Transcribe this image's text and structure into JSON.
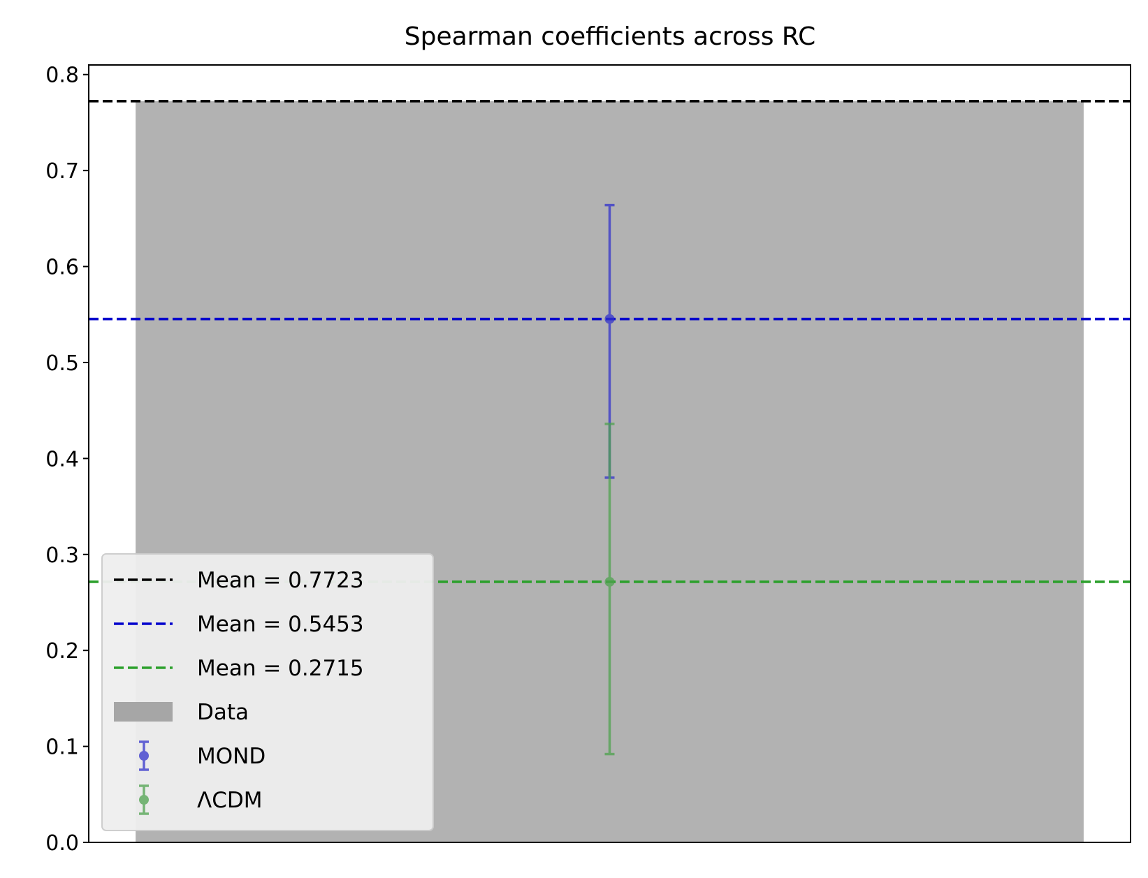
{
  "chart_data": {
    "type": "bar",
    "title": "Spearman coefficients across RC",
    "xlabel": "",
    "ylabel": "",
    "ylim": [
      0,
      0.81
    ],
    "yticks": [
      "0.0",
      "0.1",
      "0.2",
      "0.3",
      "0.4",
      "0.5",
      "0.6",
      "0.7",
      "0.8"
    ],
    "ytick_values": [
      0.0,
      0.1,
      0.2,
      0.3,
      0.4,
      0.5,
      0.6,
      0.7,
      0.8
    ],
    "grid": false,
    "legend_position": "lower left",
    "bar": {
      "name": "Data",
      "value": 0.7723,
      "color": "#b2b2b2"
    },
    "hlines": [
      {
        "label": "Mean = 0.7723",
        "value": 0.7723,
        "color": "#000000",
        "style": "dashed"
      },
      {
        "label": "Mean = 0.5453",
        "value": 0.5453,
        "color": "#0000cc",
        "style": "dashed"
      },
      {
        "label": "Mean = 0.2715",
        "value": 0.2715,
        "color": "#2ca02c",
        "style": "dashed"
      }
    ],
    "errorbars": [
      {
        "name": "MOND",
        "value": 0.5453,
        "lower": 0.38,
        "upper": 0.664,
        "color": "#3333cc"
      },
      {
        "name": "ΛCDM",
        "value": 0.2715,
        "lower": 0.092,
        "upper": 0.436,
        "color": "#4ea24e"
      }
    ],
    "legend": [
      "Mean = 0.7723",
      "Mean = 0.5453",
      "Mean = 0.2715",
      "Data",
      "MOND",
      "ΛCDM"
    ]
  }
}
